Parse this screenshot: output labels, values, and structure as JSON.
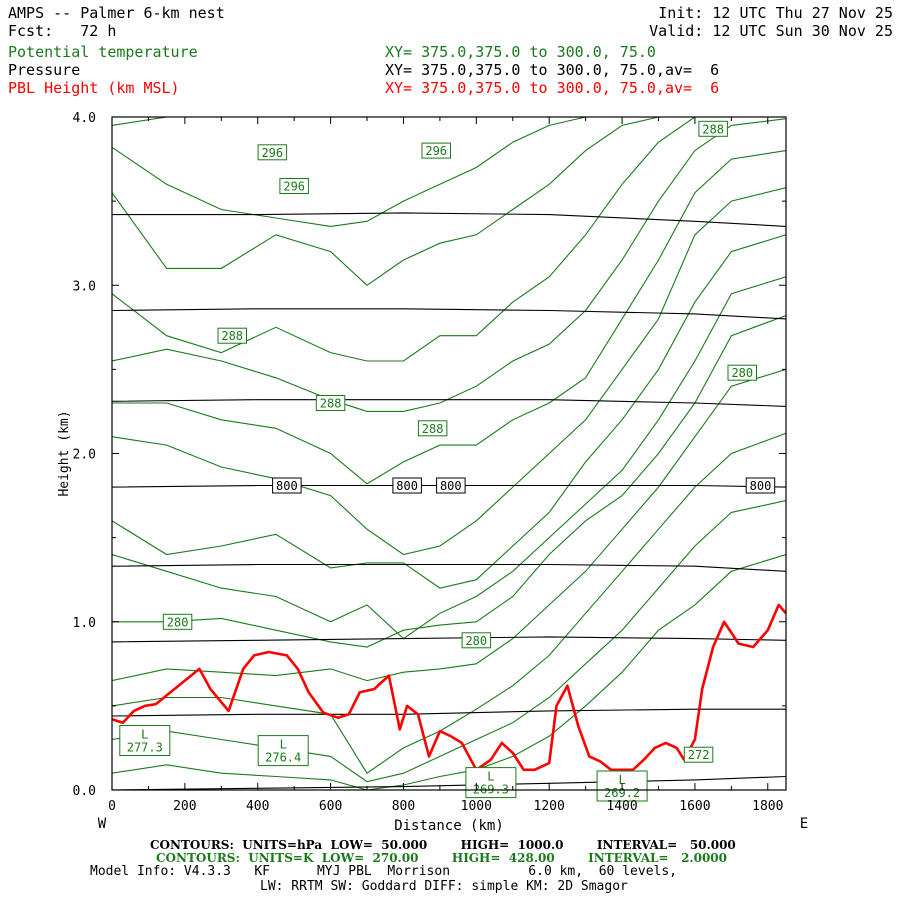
{
  "header": {
    "left1": "AMPS -- Palmer 6-km nest",
    "left2": "Fcst:   72 h",
    "right1": "Init: 12 UTC Thu 27 Nov 25",
    "right2": "Valid: 12 UTC Sun 30 Nov 25"
  },
  "fields": [
    {
      "name": "Potential temperature",
      "xy": "XY= 375.0,375.0 to 300.0, 75.0",
      "color": "#1a7a1a"
    },
    {
      "name": "Pressure",
      "xy": "XY= 375.0,375.0 to 300.0, 75.0,av=  6",
      "color": "#000000"
    },
    {
      "name": "PBL Height (km MSL)",
      "xy": "XY= 375.0,375.0 to 300.0, 75.0,av=  6",
      "color": "#ff0000"
    }
  ],
  "footer": {
    "line1": "CONTOURS:  UNITS=hPa  LOW=  50.000        HIGH=  1000.0        INTERVAL=   50.000",
    "line2": "CONTOURS:  UNITS=K  LOW=  270.00        HIGH=  428.00        INTERVAL=   2.0000",
    "line3": "Model Info: V4.3.3   KF      MYJ PBL  Morrison          6.0 km,  60 levels,",
    "line4": "LW: RRTM SW: Goddard DIFF: simple KM: 2D Smagor"
  },
  "chart_data": {
    "type": "line",
    "xlabel": "Distance (km)",
    "ylabel": "Height (km)",
    "xlim": [
      0,
      1850
    ],
    "ylim": [
      0,
      4.0
    ],
    "x_ticks": [
      "0",
      "200",
      "400",
      "600",
      "800",
      "1000",
      "1200",
      "1400",
      "1600",
      "1800"
    ],
    "y_ticks": [
      "0.0",
      "1.0",
      "2.0",
      "3.0",
      "4.0"
    ],
    "left_end_label": "W",
    "right_end_label": "E",
    "series": [
      {
        "name": "PBL Height (km MSL)",
        "color": "#ff0000",
        "x": [
          0,
          30,
          60,
          90,
          120,
          160,
          200,
          240,
          270,
          320,
          360,
          390,
          430,
          480,
          510,
          540,
          580,
          620,
          650,
          680,
          720,
          760,
          790,
          810,
          840,
          870,
          900,
          930,
          960,
          1000,
          1040,
          1070,
          1100,
          1130,
          1160,
          1200,
          1220,
          1250,
          1280,
          1310,
          1340,
          1370,
          1400,
          1430,
          1460,
          1490,
          1520,
          1550,
          1570,
          1600,
          1620,
          1650,
          1680,
          1720,
          1760,
          1800,
          1830,
          1850
        ],
        "y": [
          0.42,
          0.4,
          0.47,
          0.5,
          0.51,
          0.58,
          0.65,
          0.72,
          0.6,
          0.47,
          0.72,
          0.8,
          0.82,
          0.8,
          0.72,
          0.58,
          0.46,
          0.43,
          0.45,
          0.58,
          0.6,
          0.68,
          0.36,
          0.5,
          0.45,
          0.2,
          0.35,
          0.32,
          0.28,
          0.12,
          0.18,
          0.28,
          0.22,
          0.12,
          0.12,
          0.16,
          0.5,
          0.62,
          0.38,
          0.2,
          0.17,
          0.12,
          0.12,
          0.12,
          0.18,
          0.25,
          0.28,
          0.25,
          0.18,
          0.3,
          0.6,
          0.85,
          1.0,
          0.87,
          0.85,
          0.95,
          1.1,
          1.05
        ]
      }
    ],
    "pressure_contours": {
      "color": "#000000",
      "x": [
        0,
        400,
        800,
        1200,
        1600,
        1850
      ],
      "lines": [
        [
          3.42,
          3.42,
          3.43,
          3.42,
          3.38,
          3.35
        ],
        [
          2.85,
          2.86,
          2.86,
          2.85,
          2.83,
          2.8
        ],
        [
          2.31,
          2.32,
          2.32,
          2.32,
          2.3,
          2.28
        ],
        [
          1.8,
          1.81,
          1.81,
          1.81,
          1.81,
          1.8
        ],
        [
          1.33,
          1.34,
          1.34,
          1.34,
          1.33,
          1.3
        ],
        [
          0.88,
          0.89,
          0.9,
          0.91,
          0.9,
          0.89
        ],
        [
          0.44,
          0.45,
          0.45,
          0.47,
          0.48,
          0.48
        ],
        [
          0.0,
          0.01,
          0.02,
          0.04,
          0.06,
          0.08
        ]
      ],
      "labels": [
        {
          "text": "800",
          "x": 480,
          "y": 1.81
        },
        {
          "text": "800",
          "x": 810,
          "y": 1.81
        },
        {
          "text": "800",
          "x": 930,
          "y": 1.81
        },
        {
          "text": "800",
          "x": 1780,
          "y": 1.81
        }
      ]
    },
    "theta_contours": {
      "color": "#1a7a1a",
      "x": [
        0,
        150,
        300,
        450,
        600,
        700,
        800,
        900,
        1000,
        1100,
        1200,
        1300,
        1400,
        1500,
        1600,
        1700,
        1850
      ],
      "lines": [
        [
          3.95,
          4.0,
          4.0,
          4.0,
          4.0,
          4.0,
          4.0,
          4.0,
          4.0,
          4.0,
          4.0,
          4.0,
          4.0,
          4.0,
          4.0,
          4.0,
          4.0
        ],
        [
          3.82,
          3.6,
          3.45,
          3.4,
          3.35,
          3.38,
          3.5,
          3.6,
          3.7,
          3.85,
          3.95,
          4.0,
          4.0,
          4.0,
          4.0,
          4.0,
          4.0
        ],
        [
          3.55,
          3.1,
          3.1,
          3.3,
          3.2,
          3.0,
          3.15,
          3.25,
          3.3,
          3.45,
          3.6,
          3.8,
          3.95,
          4.0,
          4.0,
          4.0,
          4.0
        ],
        [
          2.95,
          2.7,
          2.6,
          2.75,
          2.6,
          2.55,
          2.55,
          2.7,
          2.7,
          2.9,
          3.05,
          3.3,
          3.6,
          3.85,
          4.0,
          4.0,
          4.0
        ],
        [
          2.55,
          2.62,
          2.55,
          2.45,
          2.32,
          2.25,
          2.25,
          2.3,
          2.4,
          2.55,
          2.65,
          2.85,
          3.15,
          3.5,
          3.8,
          3.95,
          3.99
        ],
        [
          2.3,
          2.3,
          2.2,
          2.15,
          2.0,
          1.82,
          1.95,
          2.05,
          2.05,
          2.2,
          2.3,
          2.45,
          2.8,
          3.15,
          3.55,
          3.75,
          3.8
        ],
        [
          2.1,
          2.05,
          1.92,
          1.85,
          1.75,
          1.55,
          1.4,
          1.45,
          1.6,
          1.8,
          2.0,
          2.2,
          2.5,
          2.8,
          3.3,
          3.5,
          3.58
        ],
        [
          1.6,
          1.4,
          1.45,
          1.52,
          1.32,
          1.35,
          1.35,
          1.2,
          1.25,
          1.45,
          1.65,
          1.95,
          2.2,
          2.5,
          2.9,
          3.2,
          3.3
        ],
        [
          1.4,
          1.3,
          1.2,
          1.15,
          1.0,
          1.1,
          0.9,
          1.05,
          1.15,
          1.3,
          1.5,
          1.7,
          1.9,
          2.2,
          2.55,
          2.95,
          3.05
        ],
        [
          1.0,
          1.0,
          1.02,
          0.95,
          0.88,
          0.85,
          0.95,
          0.98,
          1.0,
          1.15,
          1.4,
          1.6,
          1.75,
          2.0,
          2.3,
          2.7,
          2.82
        ],
        [
          0.65,
          0.72,
          0.7,
          0.68,
          0.72,
          0.65,
          0.7,
          0.72,
          0.75,
          0.9,
          1.1,
          1.3,
          1.55,
          1.8,
          2.1,
          2.4,
          2.5
        ],
        [
          0.5,
          0.55,
          0.55,
          0.5,
          0.45,
          0.1,
          0.25,
          0.35,
          0.48,
          0.62,
          0.8,
          1.05,
          1.3,
          1.55,
          1.8,
          2.0,
          2.12
        ],
        [
          0.3,
          0.35,
          0.3,
          0.25,
          0.2,
          0.05,
          0.1,
          0.2,
          0.3,
          0.4,
          0.55,
          0.75,
          0.95,
          1.2,
          1.45,
          1.65,
          1.72
        ],
        [
          0.1,
          0.15,
          0.1,
          0.08,
          0.06,
          0.0,
          0.03,
          0.08,
          0.12,
          0.2,
          0.32,
          0.5,
          0.7,
          0.95,
          1.1,
          1.3,
          1.4
        ]
      ],
      "labels": [
        {
          "text": "296",
          "x": 440,
          "y": 3.79
        },
        {
          "text": "296",
          "x": 500,
          "y": 3.59
        },
        {
          "text": "296",
          "x": 890,
          "y": 3.8
        },
        {
          "text": "288",
          "x": 1650,
          "y": 3.93
        },
        {
          "text": "288",
          "x": 330,
          "y": 2.7
        },
        {
          "text": "288",
          "x": 600,
          "y": 2.3
        },
        {
          "text": "288",
          "x": 880,
          "y": 2.15
        },
        {
          "text": "280",
          "x": 1730,
          "y": 2.48
        },
        {
          "text": "280",
          "x": 180,
          "y": 1.0
        },
        {
          "text": "280",
          "x": 1000,
          "y": 0.89
        },
        {
          "text": "272",
          "x": 1610,
          "y": 0.21
        }
      ],
      "lows": [
        {
          "label": "L",
          "value": "277.3",
          "x": 90,
          "y": 0.3
        },
        {
          "label": "L",
          "value": "276.4",
          "x": 470,
          "y": 0.24
        },
        {
          "label": "L",
          "value": "269.3",
          "x": 1040,
          "y": 0.05
        },
        {
          "label": "L",
          "value": "269.2",
          "x": 1400,
          "y": 0.03
        }
      ]
    }
  }
}
